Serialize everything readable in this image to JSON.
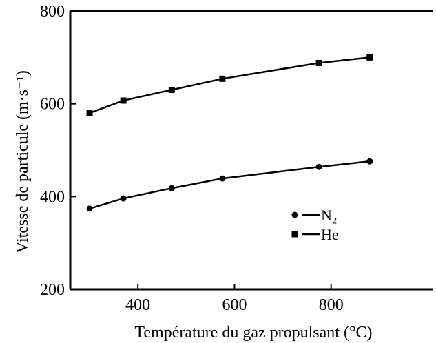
{
  "chart_data": {
    "type": "line",
    "xlabel": "Température du gaz propulsant (°C)",
    "ylabel": "Vitesse de particule (m·s⁻¹)",
    "xlim": [
      260,
      1010
    ],
    "ylim": [
      200,
      800
    ],
    "xticks": [
      "400",
      "600",
      "800"
    ],
    "yticks": [
      "200",
      "400",
      "600",
      "800"
    ],
    "legend_position": "center-right",
    "grid": false,
    "series": [
      {
        "name": "N₂",
        "marker": "circle",
        "color": "#000000",
        "x": [
          300,
          370,
          470,
          575,
          775,
          880
        ],
        "y": [
          374,
          396,
          418,
          439,
          464,
          476
        ]
      },
      {
        "name": "He",
        "marker": "square",
        "color": "#000000",
        "x": [
          300,
          370,
          470,
          575,
          775,
          880
        ],
        "y": [
          580,
          607,
          630,
          654,
          688,
          700
        ]
      }
    ]
  }
}
